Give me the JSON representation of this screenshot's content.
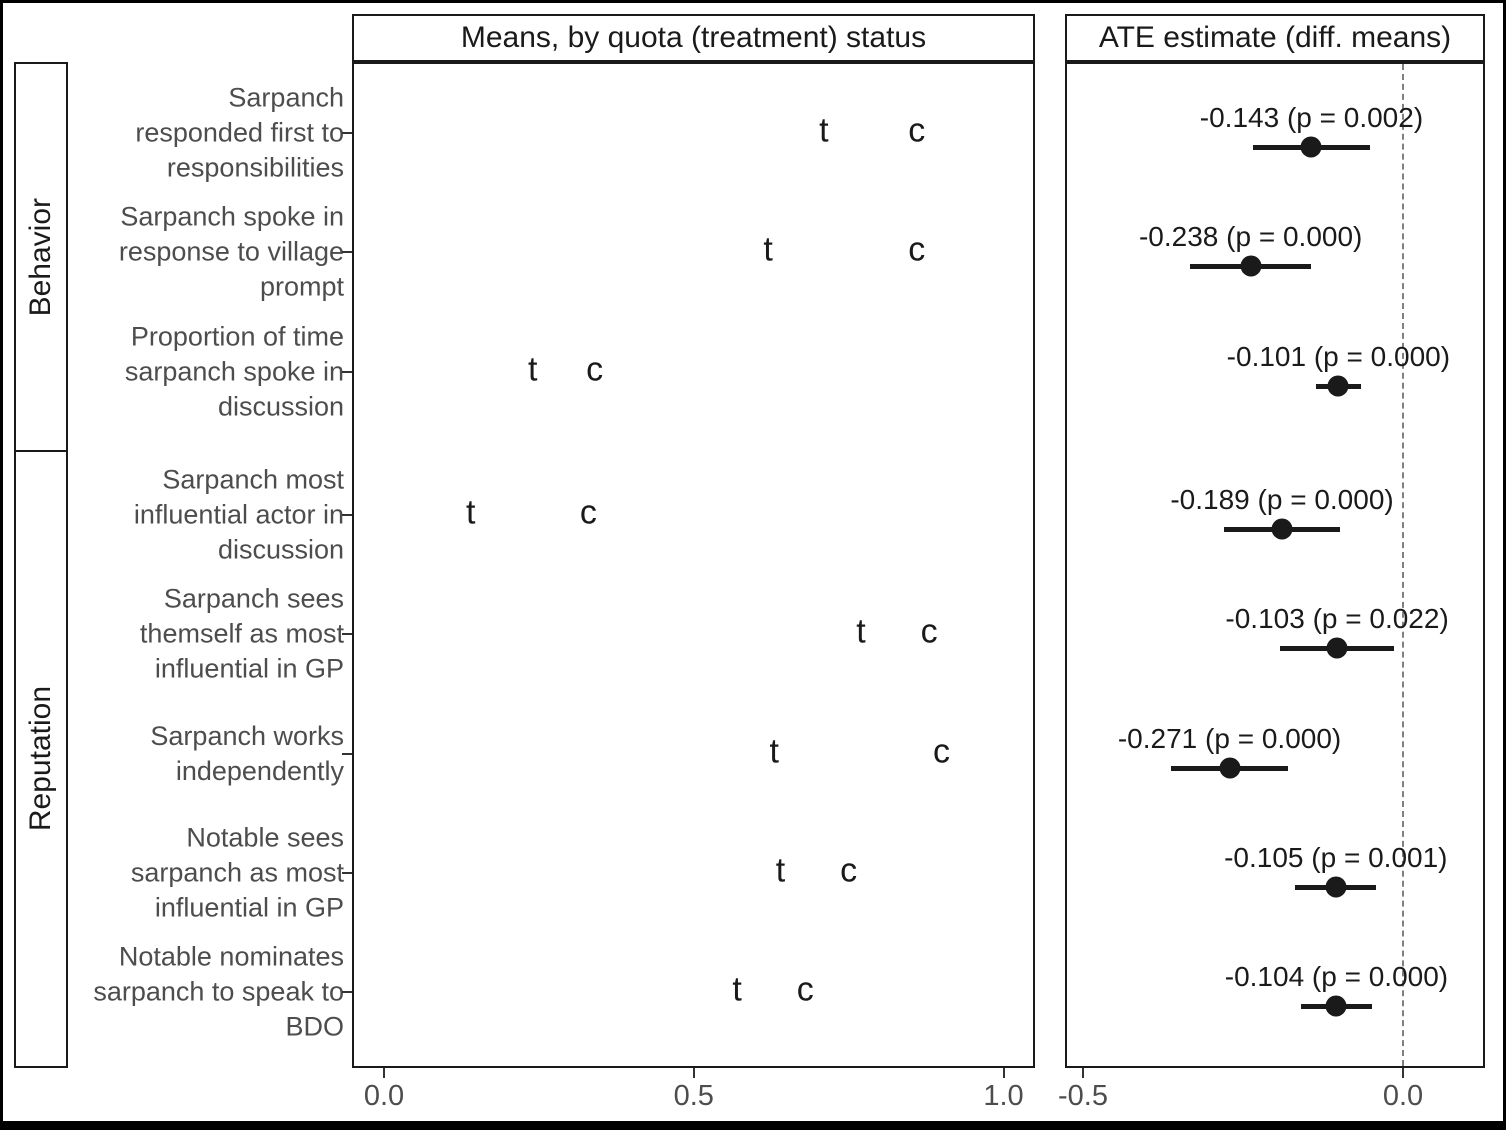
{
  "figure": {
    "left_panel_title": "Means, by quota (treatment) status",
    "right_panel_title": "ATE estimate (diff. means)",
    "groups": [
      {
        "label": "Behavior"
      },
      {
        "label": "Reputation"
      }
    ],
    "colors": {
      "ink": "#1a1a1a",
      "axis_text": "#4d4d4d",
      "zero_line": "#808080",
      "background": "#ffffff",
      "outer_frame": "#000000"
    }
  },
  "chart_data": {
    "type": "scatter",
    "subtype": "two-panel forest plot (means by group + ATE with CI)",
    "marker_labels": {
      "treatment": "t",
      "control": "c"
    },
    "left_axis": {
      "tick_labels": [
        "0.0",
        "0.5",
        "1.0"
      ],
      "tick_values": [
        0,
        0.5,
        1
      ],
      "range": [
        -0.05,
        1.05
      ]
    },
    "right_axis": {
      "tick_labels": [
        "-0.5",
        "0.0"
      ],
      "tick_values": [
        -0.5,
        0
      ],
      "range": [
        -0.53,
        0.13
      ],
      "zero_reference_line": 0
    },
    "legend_position": "none",
    "grid": false,
    "rows": [
      {
        "group": "Behavior",
        "label": "Sarpanch responded first to responsibilities",
        "label_lines": [
          "Sarpanch",
          "responded first to",
          "responsibilities"
        ],
        "t_mean": 0.71,
        "c_mean": 0.86,
        "ate": -0.143,
        "p_value": "0.002",
        "ate_label": "-0.143 (p = 0.002)",
        "ci": [
          -0.235,
          -0.051
        ]
      },
      {
        "group": "Behavior",
        "label": "Sarpanch spoke in response to village prompt",
        "label_lines": [
          "Sarpanch spoke in",
          "response to village",
          "prompt"
        ],
        "t_mean": 0.62,
        "c_mean": 0.86,
        "ate": -0.238,
        "p_value": "0.000",
        "ate_label": "-0.238 (p = 0.000)",
        "ci": [
          -0.333,
          -0.143
        ]
      },
      {
        "group": "Behavior",
        "label": "Proportion of time sarpanch spoke in discussion",
        "label_lines": [
          "Proportion of time",
          "sarpanch spoke in",
          "discussion"
        ],
        "t_mean": 0.24,
        "c_mean": 0.34,
        "ate": -0.101,
        "p_value": "0.000",
        "ate_label": "-0.101 (p = 0.000)",
        "ci": [
          -0.136,
          -0.066
        ]
      },
      {
        "group": "Reputation",
        "label": "Sarpanch most influential actor in discussion",
        "label_lines": [
          "Sarpanch most",
          "influential actor in",
          "discussion"
        ],
        "t_mean": 0.14,
        "c_mean": 0.33,
        "ate": -0.189,
        "p_value": "0.000",
        "ate_label": "-0.189 (p = 0.000)",
        "ci": [
          -0.279,
          -0.099
        ]
      },
      {
        "group": "Reputation",
        "label": "Sarpanch sees themself as most influential in GP",
        "label_lines": [
          "Sarpanch sees",
          "themself as most",
          "influential in GP"
        ],
        "t_mean": 0.77,
        "c_mean": 0.88,
        "ate": -0.103,
        "p_value": "0.022",
        "ate_label": "-0.103 (p = 0.022)",
        "ci": [
          -0.192,
          -0.014
        ]
      },
      {
        "group": "Reputation",
        "label": "Sarpanch works independently",
        "label_lines": [
          "Sarpanch works",
          "independently"
        ],
        "t_mean": 0.63,
        "c_mean": 0.9,
        "ate": -0.271,
        "p_value": "0.000",
        "ate_label": "-0.271 (p = 0.000)",
        "ci": [
          -0.362,
          -0.18
        ]
      },
      {
        "group": "Reputation",
        "label": "Notable sees sarpanch as most influential in GP",
        "label_lines": [
          "Notable sees",
          "sarpanch as most",
          "influential in GP"
        ],
        "t_mean": 0.64,
        "c_mean": 0.75,
        "ate": -0.105,
        "p_value": "0.001",
        "ate_label": "-0.105 (p = 0.001)",
        "ci": [
          -0.168,
          -0.042
        ]
      },
      {
        "group": "Reputation",
        "label": "Notable nominates sarpanch to speak to BDO",
        "label_lines": [
          "Notable nominates",
          "sarpanch to speak to",
          "BDO"
        ],
        "t_mean": 0.57,
        "c_mean": 0.68,
        "ate": -0.104,
        "p_value": "0.000",
        "ate_label": "-0.104 (p = 0.000)",
        "ci": [
          -0.16,
          -0.048
        ]
      }
    ]
  }
}
